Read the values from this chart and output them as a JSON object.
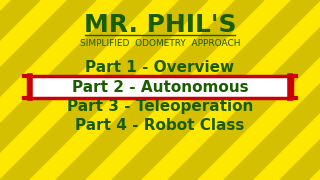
{
  "bg_color_yellow": "#FFE800",
  "bg_color_stripe": "#D4C000",
  "title": "MR. PHIL'S",
  "subtitle": "SIMPLIFIED  ODOMETRY  APPROACH",
  "parts": [
    "Part 1 - Overview",
    "Part 2 - Autonomous",
    "Part 3 - Teleoperation",
    "Part 4 - Robot Class"
  ],
  "highlighted_index": 1,
  "text_color": "#1A5C00",
  "highlight_bg": "#FFFFFF",
  "highlight_border": "#CC0000",
  "title_fontsize": 18,
  "subtitle_fontsize": 6.5,
  "parts_fontsize": 11
}
